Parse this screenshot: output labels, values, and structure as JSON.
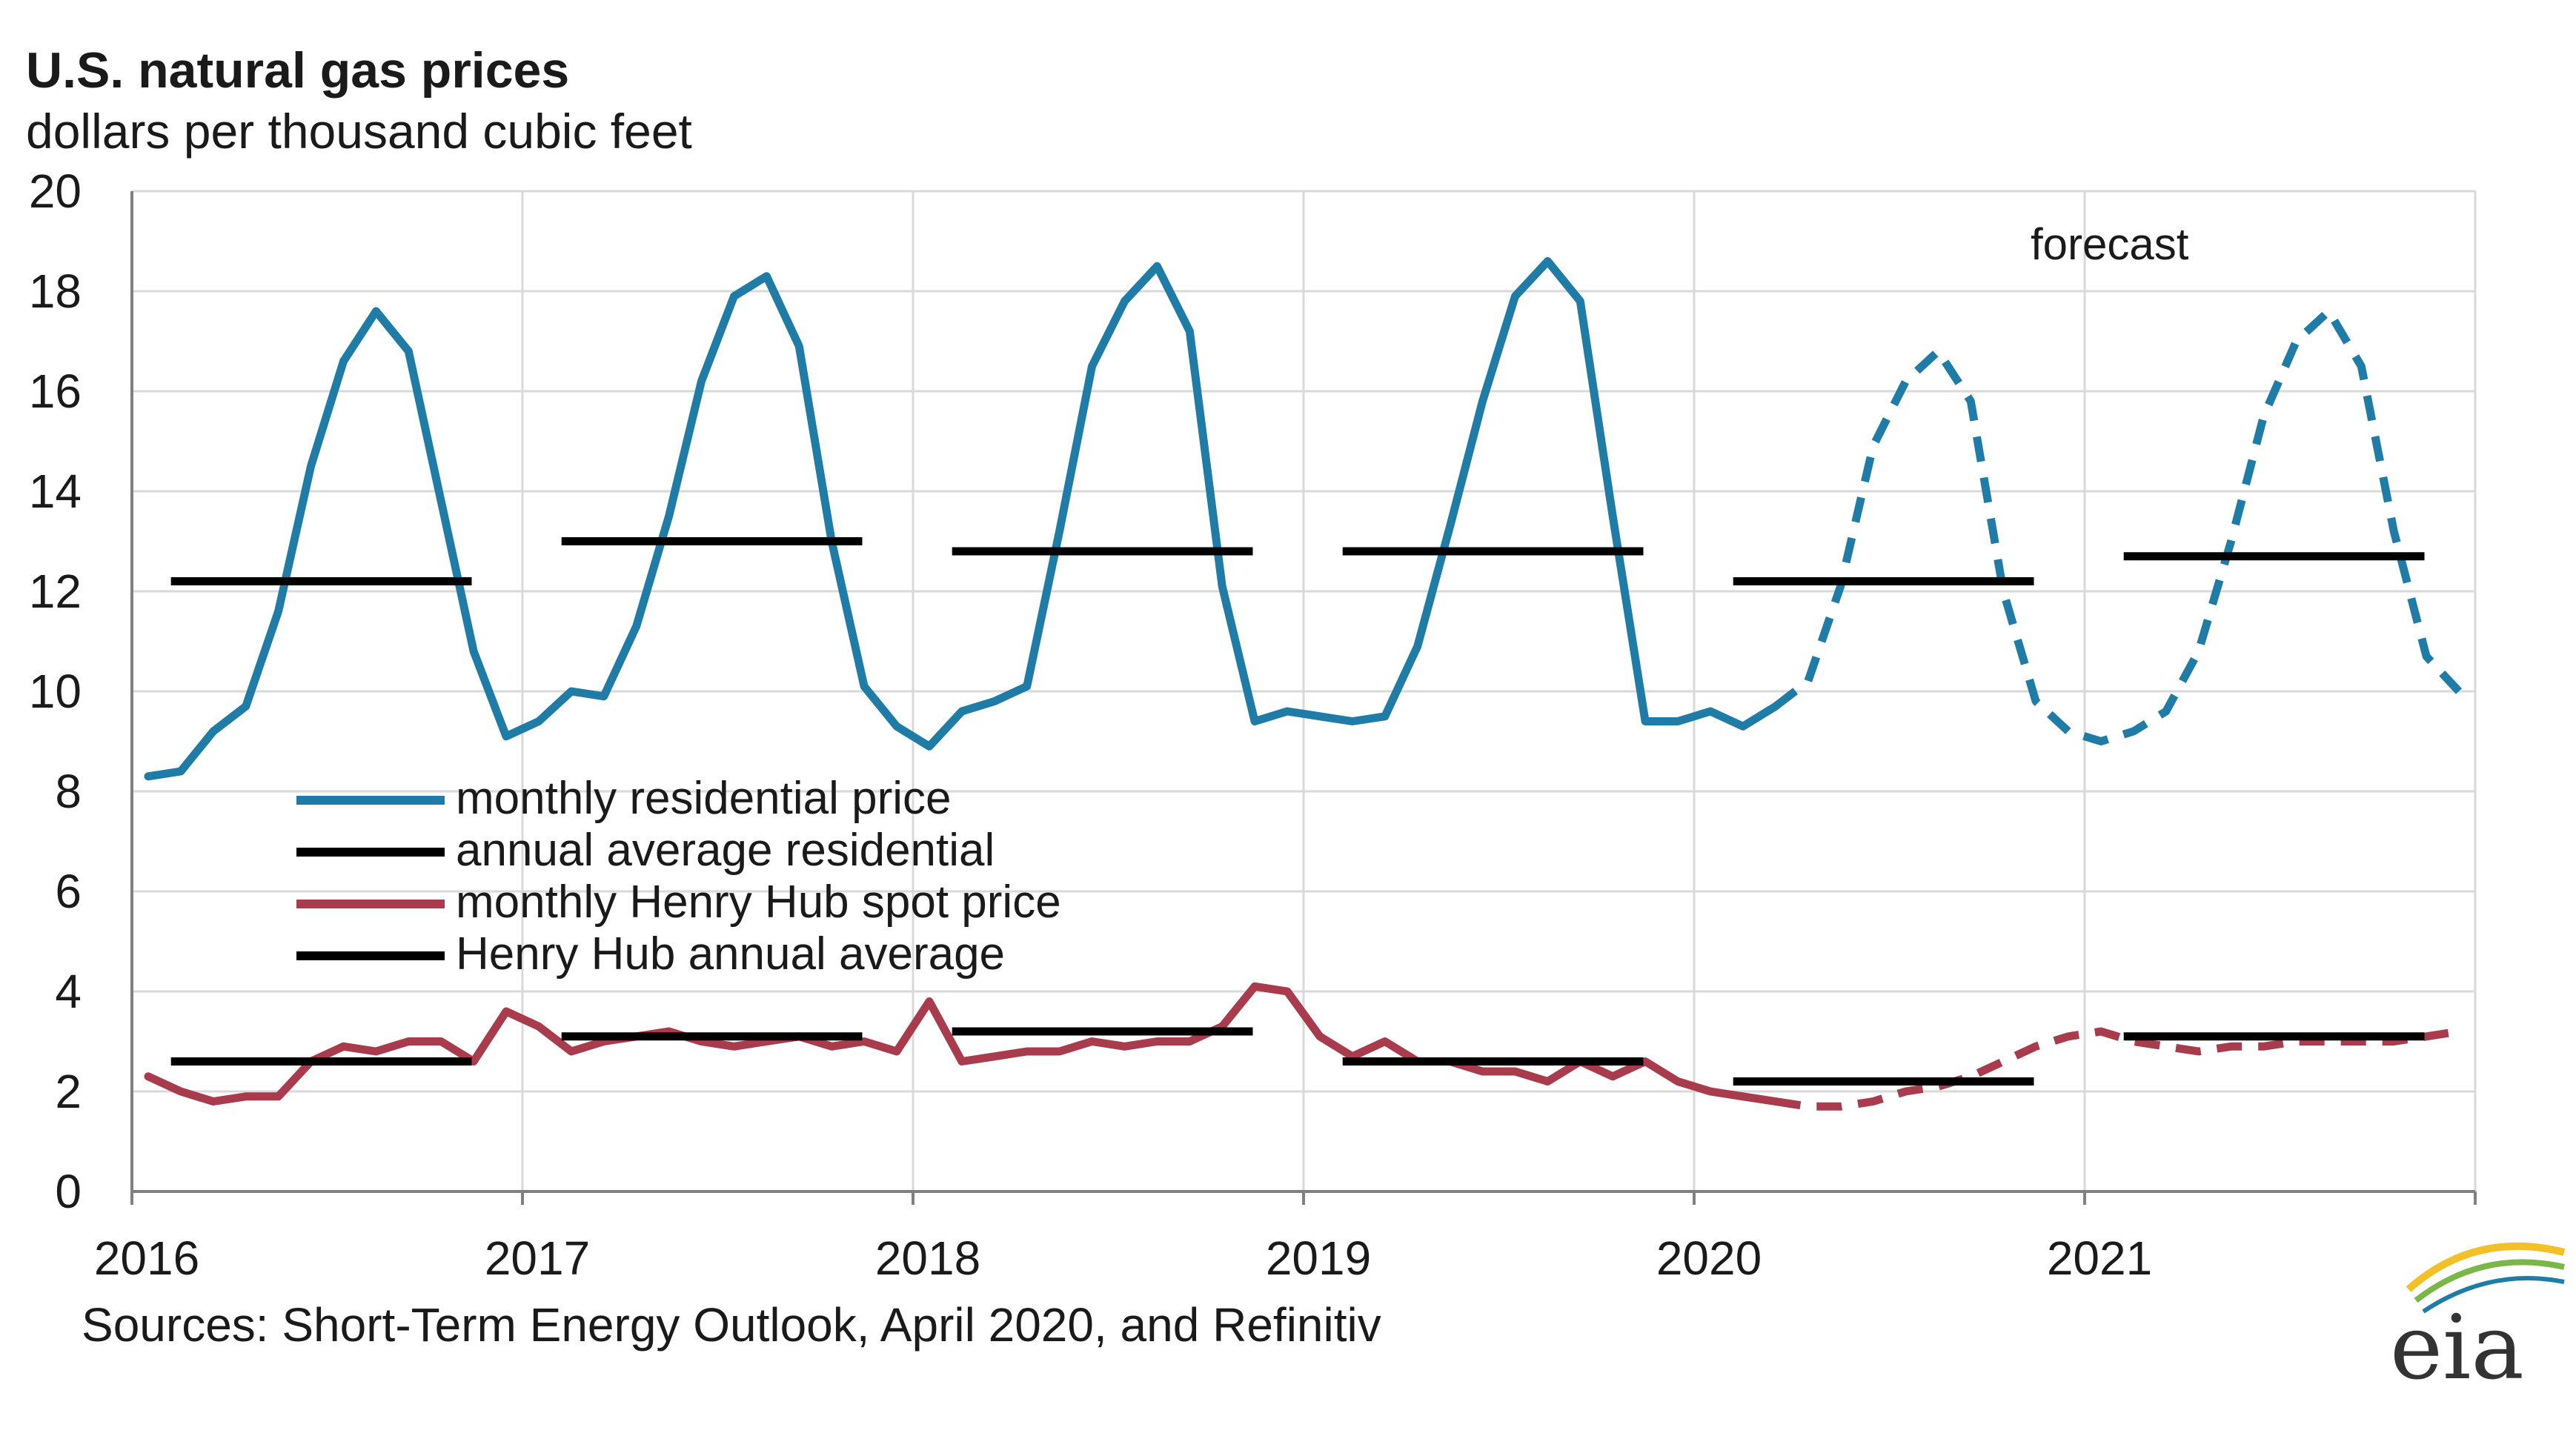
{
  "chart_data": {
    "type": "line",
    "title": "U.S. natural gas prices",
    "subtitle": "dollars per thousand cubic feet",
    "xlabel": "",
    "ylabel": "dollars per thousand cubic feet",
    "ylim": [
      0,
      20
    ],
    "yticks": [
      0,
      2,
      4,
      6,
      8,
      10,
      12,
      14,
      16,
      18,
      20
    ],
    "xlim": [
      2016,
      2022
    ],
    "xtick_labels": [
      "2016",
      "2017",
      "2018",
      "2019",
      "2020",
      "2021"
    ],
    "xtick_values": [
      2016,
      2017,
      2018,
      2019,
      2020,
      2021
    ],
    "grid": true,
    "forecast_start": 2020.25,
    "forecast_label": "forecast",
    "series": [
      {
        "name": "monthly residential price",
        "color": "#1f7ca6",
        "style": "monthly",
        "values": [
          8.3,
          8.4,
          9.2,
          9.7,
          11.6,
          14.5,
          16.6,
          17.6,
          16.8,
          13.8,
          10.8,
          9.1,
          9.4,
          10.0,
          9.9,
          11.3,
          13.5,
          16.2,
          17.9,
          18.3,
          16.9,
          13.0,
          10.1,
          9.3,
          8.9,
          9.6,
          9.8,
          10.1,
          13.2,
          16.5,
          17.8,
          18.5,
          17.2,
          12.1,
          9.4,
          9.6,
          9.5,
          9.4,
          9.5,
          10.9,
          13.3,
          15.8,
          17.9,
          18.6,
          17.8,
          13.5,
          9.4,
          9.4,
          9.6,
          9.3,
          9.7,
          10.2,
          12.1,
          14.9,
          16.2,
          16.8,
          15.8,
          12.0,
          9.8,
          9.2,
          9.0,
          9.2,
          9.6,
          10.8,
          13.0,
          15.5,
          17.0,
          17.6,
          16.5,
          13.2,
          10.7,
          10.0
        ]
      },
      {
        "name": "annual average residential",
        "color": "#000000",
        "style": "annual",
        "values": [
          12.2,
          13.0,
          12.8,
          12.8,
          12.2,
          12.7
        ]
      },
      {
        "name": "monthly Henry Hub spot price",
        "color": "#a83c4d",
        "style": "monthly",
        "values": [
          2.3,
          2.0,
          1.8,
          1.9,
          1.9,
          2.6,
          2.9,
          2.8,
          3.0,
          3.0,
          2.6,
          3.6,
          3.3,
          2.8,
          3.0,
          3.1,
          3.2,
          3.0,
          2.9,
          3.0,
          3.1,
          2.9,
          3.0,
          2.8,
          3.8,
          2.6,
          2.7,
          2.8,
          2.8,
          3.0,
          2.9,
          3.0,
          3.0,
          3.3,
          4.1,
          4.0,
          3.1,
          2.7,
          3.0,
          2.6,
          2.6,
          2.4,
          2.4,
          2.2,
          2.6,
          2.3,
          2.6,
          2.2,
          2.0,
          1.9,
          1.8,
          1.7,
          1.7,
          1.8,
          2.0,
          2.1,
          2.3,
          2.6,
          2.9,
          3.1,
          3.2,
          3.0,
          2.9,
          2.8,
          2.9,
          2.9,
          3.0,
          3.0,
          3.0,
          3.0,
          3.1,
          3.2
        ]
      },
      {
        "name": "Henry Hub annual average",
        "color": "#000000",
        "style": "annual",
        "values": [
          2.6,
          3.1,
          3.2,
          2.6,
          2.2,
          3.1
        ]
      }
    ],
    "source": "Sources: Short-Term Energy Outlook, April 2020, and Refinitiv"
  },
  "logo": {
    "text": "eia",
    "accent_colors": [
      "#f2c029",
      "#7ab648",
      "#1f7ca6"
    ]
  },
  "colors": {
    "residential": "#1f7ca6",
    "henry_hub": "#a83c4d",
    "annual": "#000000",
    "grid": "#d9d9d9",
    "axis": "#808080"
  }
}
